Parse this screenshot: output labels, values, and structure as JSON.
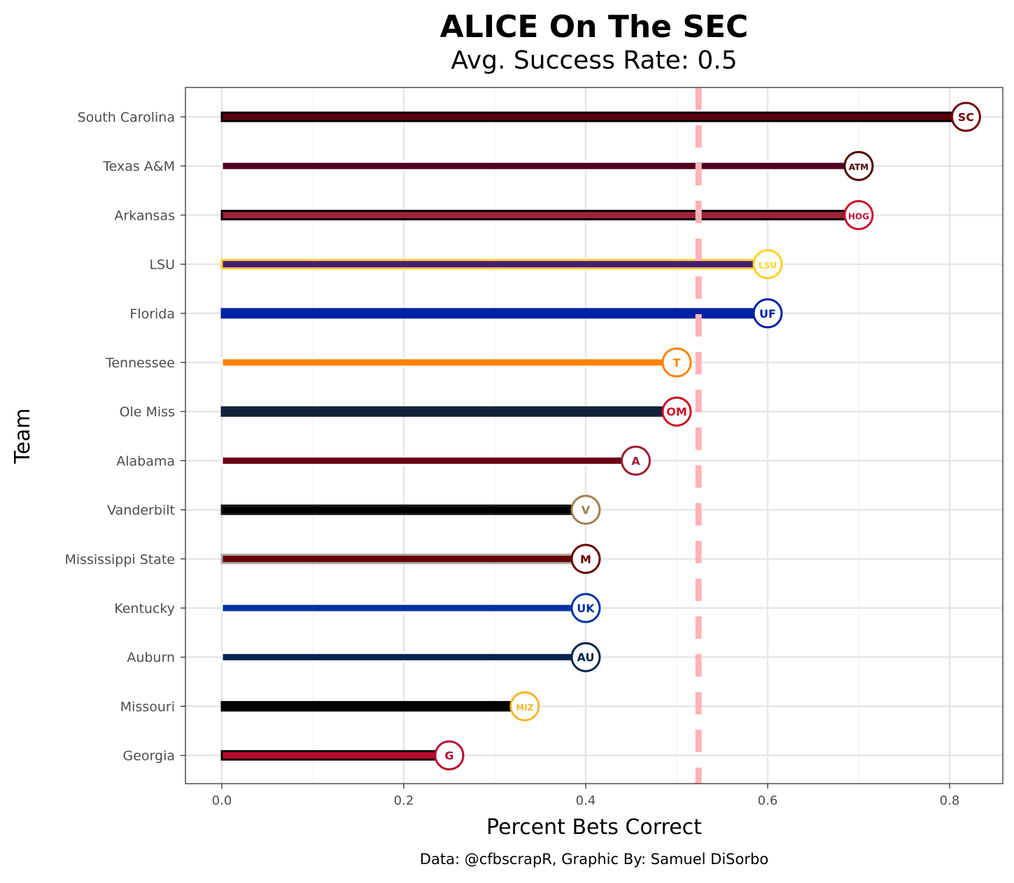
{
  "chart_data": {
    "type": "bar",
    "orientation": "horizontal",
    "title": "ALICE On The SEC",
    "subtitle": "Avg. Success Rate: 0.5",
    "xlabel": "Percent Bets Correct",
    "ylabel": "Team",
    "caption": "Data: @cfbscrapR, Graphic By: Samuel DiSorbo",
    "xlim": [
      -0.04,
      0.86
    ],
    "xticks": [
      "0.0",
      "0.2",
      "0.4",
      "0.6",
      "0.8"
    ],
    "xtick_values": [
      0,
      0.2,
      0.4,
      0.6,
      0.8
    ],
    "reference_line": 0.524,
    "reference_color": "#ffb3b8",
    "grid": true,
    "categories": [
      "South Carolina",
      "Texas A&M",
      "Arkansas",
      "LSU",
      "Florida",
      "Tennessee",
      "Ole Miss",
      "Alabama",
      "Vanderbilt",
      "Mississippi State",
      "Kentucky",
      "Auburn",
      "Missouri",
      "Georgia"
    ],
    "values": [
      0.818,
      0.7,
      0.7,
      0.6,
      0.6,
      0.5,
      0.5,
      0.455,
      0.4,
      0.4,
      0.4,
      0.4,
      0.333,
      0.25
    ],
    "fill_colors": [
      "#5c0010",
      "#500020",
      "#9d2235",
      "#461d7c",
      "#0021a5",
      "#ff8200",
      "#14213d",
      "#690014",
      "#000000",
      "#660000",
      "#0033a0",
      "#03244d",
      "#000000",
      "#ba0c2f"
    ],
    "outline_colors": [
      "#000000",
      "#ffffff",
      "#000000",
      "#fdd023",
      "#0021a5",
      "#ffffff",
      "#14213d",
      "#ffffff",
      "#1a1a1a",
      "#aaaaaa",
      "#ffffff",
      "#ffffff",
      "#000000",
      "#000000"
    ],
    "logo_marks": [
      "SC",
      "ATM",
      "HOG",
      "LSU",
      "UF",
      "T",
      "OM",
      "A",
      "V",
      "M",
      "UK",
      "AU",
      "MIZ",
      "G"
    ],
    "logo_colors": [
      "#73000a",
      "#500000",
      "#c8102e",
      "#fdd023",
      "#0021a5",
      "#ff8200",
      "#ce1126",
      "#9e1b32",
      "#a08050",
      "#660000",
      "#0033a0",
      "#03244d",
      "#f1b82d",
      "#ba0c2f"
    ]
  }
}
